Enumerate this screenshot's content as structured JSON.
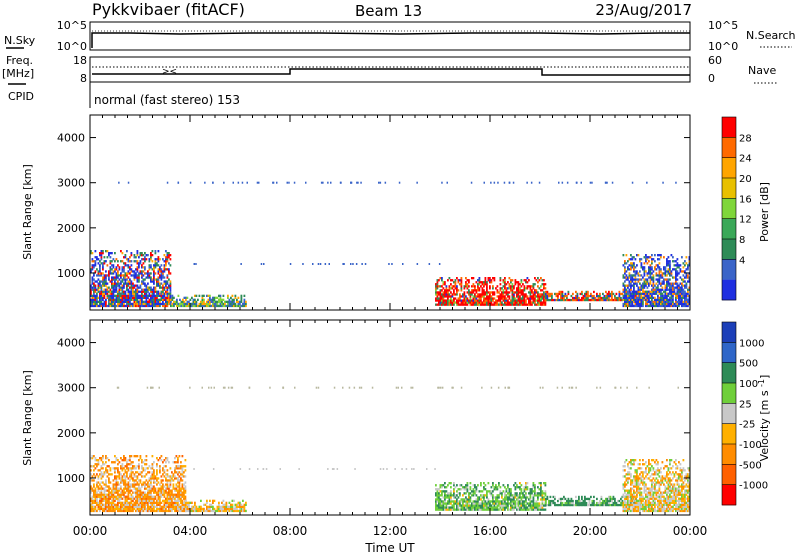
{
  "header": {
    "station": "Pykkvibaer (fitACF)",
    "beam": "Beam 13",
    "date": "23/Aug/2017"
  },
  "time_axis": {
    "ticks": [
      "00:00",
      "04:00",
      "08:00",
      "12:00",
      "16:00",
      "20:00",
      "00:00"
    ],
    "tick_hours": [
      0,
      4,
      8,
      12,
      16,
      20,
      24
    ],
    "xlabel": "Time UT",
    "range_hours": [
      0,
      24
    ]
  },
  "nsky_panel": {
    "left_label": "N.Sky",
    "right_label": "N.Search",
    "left_ticks": [
      "10^5",
      "10^0"
    ],
    "right_ticks": [
      "10^5",
      "10^0"
    ]
  },
  "freq_panel": {
    "left_label_1": "Freq.",
    "left_label_2": "[MHz]",
    "right_label": "Nave",
    "left_ticks": [
      "18",
      "8"
    ],
    "right_ticks": [
      "60",
      "0"
    ],
    "cpid_label": "CPID"
  },
  "cpid_text": "normal (fast stereo) 153",
  "chart_data": [
    {
      "type": "heatmap",
      "name": "power",
      "ylabel": "Slant Range [km]",
      "ylim": [
        180,
        4500
      ],
      "yticks": [
        1000,
        2000,
        3000,
        4000
      ],
      "xlim_hours": [
        0,
        24
      ],
      "colorbar": {
        "label": "Power [dB]",
        "ticks": [
          "28",
          "24",
          "20",
          "16",
          "12",
          "8",
          "4"
        ],
        "colors": [
          "#ff0000",
          "#ff6a00",
          "#ffa500",
          "#e8c000",
          "#7fd63a",
          "#3aa858",
          "#2e8b57",
          "#3a64c8",
          "#1f2fe0"
        ]
      },
      "regions": [
        {
          "t0": 0.0,
          "t1": 3.2,
          "r0": 250,
          "r1": 1500,
          "level": "mixed-high"
        },
        {
          "t0": 3.2,
          "t1": 6.2,
          "r0": 250,
          "r1": 500,
          "level": "low"
        },
        {
          "t0": 13.8,
          "t1": 18.2,
          "r0": 280,
          "r1": 900,
          "level": "high"
        },
        {
          "t0": 18.2,
          "t1": 22.0,
          "r0": 380,
          "r1": 600,
          "level": "mid"
        },
        {
          "t0": 21.3,
          "t1": 24.0,
          "r0": 250,
          "r1": 1400,
          "level": "mixed"
        }
      ]
    },
    {
      "type": "heatmap",
      "name": "velocity",
      "ylabel": "Slant Range [km]",
      "ylim": [
        180,
        4500
      ],
      "yticks": [
        1000,
        2000,
        3000,
        4000
      ],
      "xlim_hours": [
        0,
        24
      ],
      "colorbar": {
        "label": "Velocity [m s^-1]",
        "ticks": [
          "1000",
          "500",
          "100",
          "25",
          "-25",
          "-100",
          "-500",
          "-1000"
        ],
        "colors": [
          "#1c3fb8",
          "#2f66c8",
          "#2e8b57",
          "#6fcf3a",
          "#c8c8c8",
          "#ffb000",
          "#ff8c00",
          "#ff6000",
          "#ff0000"
        ]
      },
      "regions": [
        {
          "t0": 0.0,
          "t1": 3.8,
          "r0": 250,
          "r1": 1500,
          "level": "negative"
        },
        {
          "t0": 3.8,
          "t1": 6.2,
          "r0": 250,
          "r1": 500,
          "level": "mixed"
        },
        {
          "t0": 13.8,
          "t1": 18.2,
          "r0": 280,
          "r1": 900,
          "level": "positive"
        },
        {
          "t0": 18.2,
          "t1": 22.0,
          "r0": 380,
          "r1": 600,
          "level": "positive-strong"
        },
        {
          "t0": 21.3,
          "t1": 24.0,
          "r0": 250,
          "r1": 1400,
          "level": "mixed"
        }
      ]
    }
  ]
}
